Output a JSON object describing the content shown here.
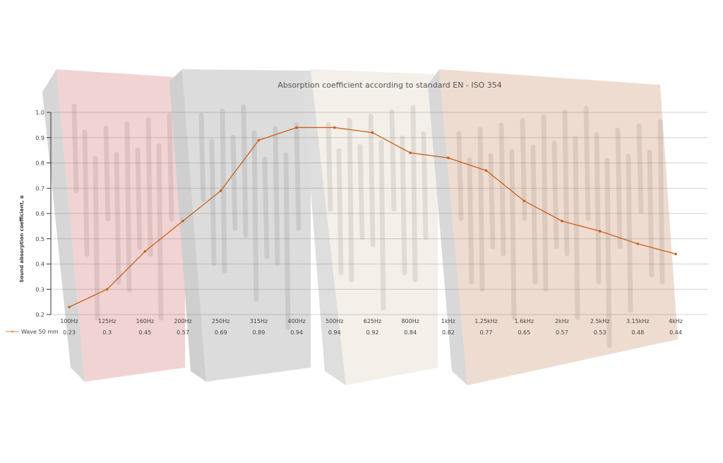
{
  "chart_data": {
    "type": "line",
    "title": "Absorption coefficient according to standard EN - ISO 354",
    "xlabel": "",
    "ylabel": "Sound absorption coefficient, α",
    "ylim": [
      0.2,
      1.0
    ],
    "yticks": [
      "0.2",
      "0.3",
      "0.4",
      "0.5",
      "0.6",
      "0.7",
      "0.8",
      "0.9",
      "1.0"
    ],
    "grid": true,
    "legend_position": "bottom-left",
    "categories": [
      "100Hz",
      "125Hz",
      "160Hz",
      "200Hz",
      "250Hz",
      "315Hz",
      "400Hz",
      "500Hz",
      "625Hz",
      "800Hz",
      "1kHz",
      "1.25kHz",
      "1.6kHz",
      "2kHz",
      "2.5kHz",
      "3.15kHz",
      "4kHz"
    ],
    "series": [
      {
        "name": "Wave 50 mm",
        "color": "#c8601a",
        "values": [
          0.23,
          0.3,
          0.45,
          0.57,
          0.69,
          0.89,
          0.94,
          0.94,
          0.92,
          0.84,
          0.82,
          0.77,
          0.65,
          0.57,
          0.53,
          0.48,
          0.44
        ],
        "labels": [
          "0.23",
          "0.3",
          "0.45",
          "0.57",
          "0.69",
          "0.89",
          "0.94",
          "0.94",
          "0.92",
          "0.84",
          "0.82",
          "0.77",
          "0.65",
          "0.57",
          "0.53",
          "0.48",
          "0.44"
        ]
      }
    ]
  }
}
